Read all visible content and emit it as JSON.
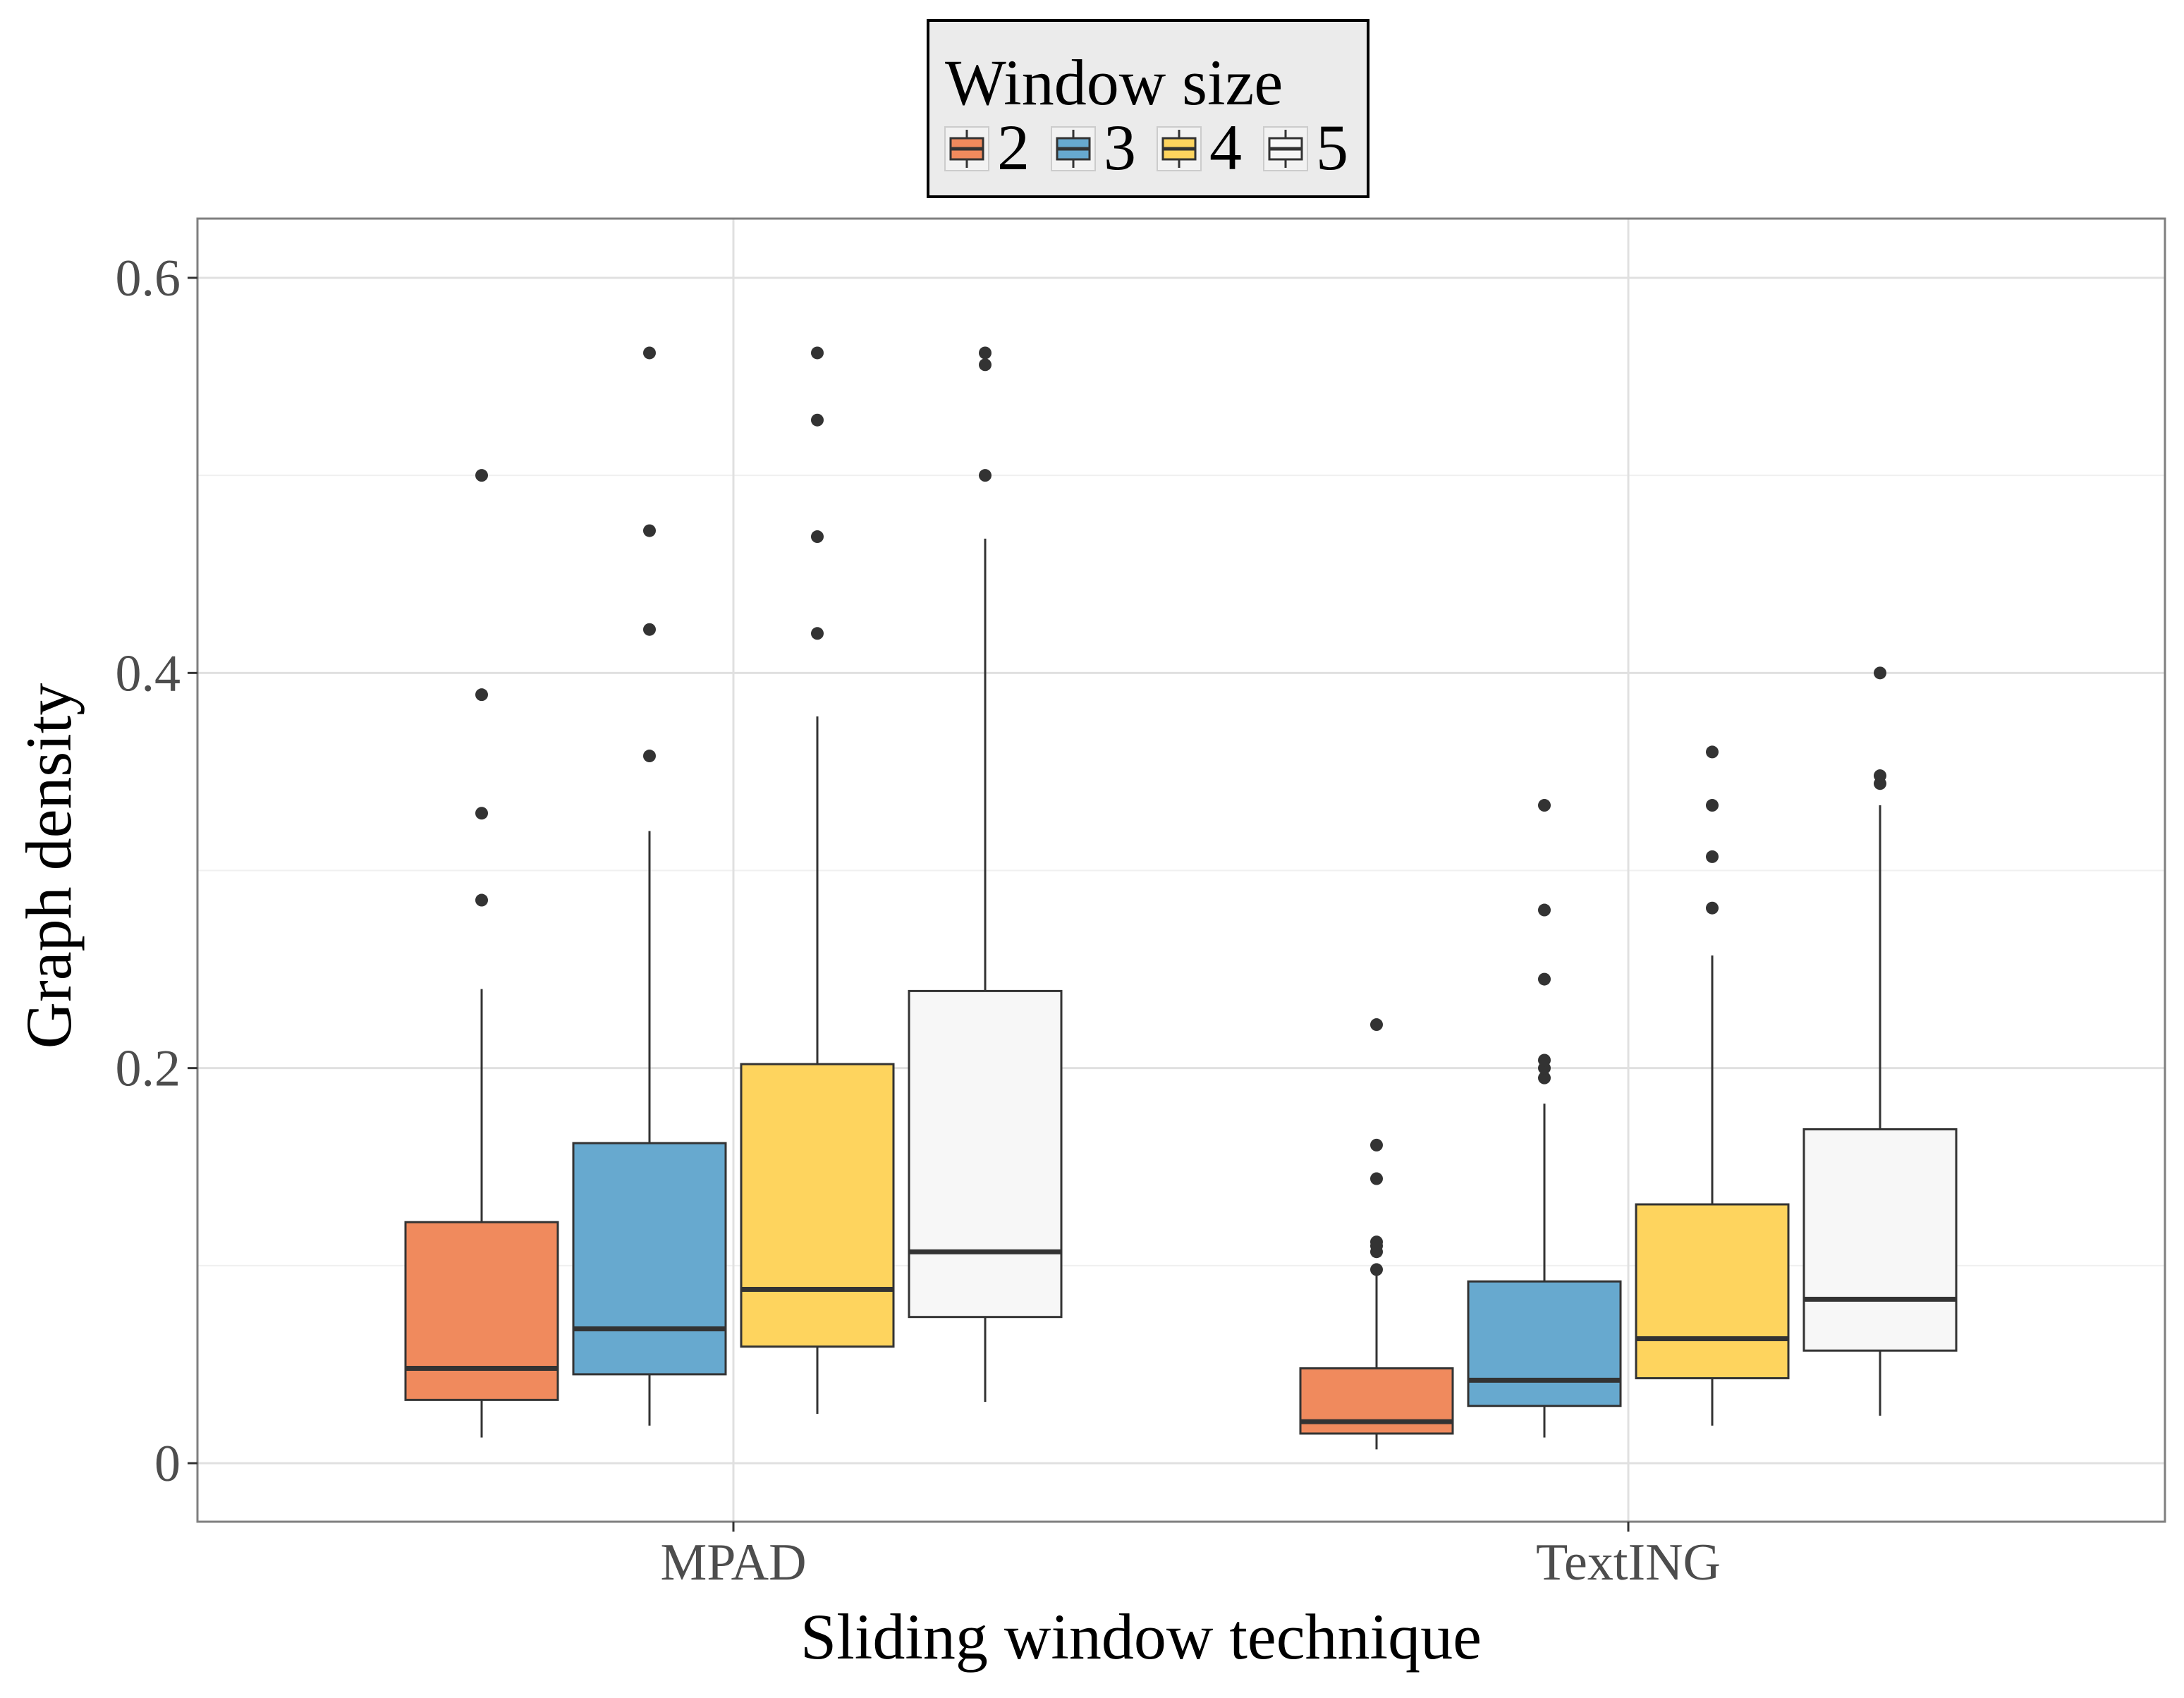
{
  "chart_data": {
    "type": "boxplot",
    "xlabel": "Sliding window technique",
    "ylabel": "Graph density",
    "categories": [
      "MPAD",
      "TextING"
    ],
    "ylim": [
      -0.03,
      0.63
    ],
    "yticks": [
      0,
      0.2,
      0.4,
      0.6
    ],
    "ytick_labels": [
      "0",
      "0.2",
      "0.4",
      "0.6"
    ],
    "grid": true,
    "legend": {
      "title": "Window size",
      "position": "top",
      "entries": [
        "2",
        "3",
        "4",
        "5"
      ]
    },
    "series": [
      {
        "name": "2",
        "color": "#f08a5d",
        "boxes": [
          {
            "category": "MPAD",
            "whisker_low": 0.013,
            "q1": 0.032,
            "median": 0.048,
            "q3": 0.122,
            "whisker_high": 0.24,
            "outliers": [
              0.285,
              0.329,
              0.389,
              0.5
            ]
          },
          {
            "category": "TextING",
            "whisker_low": 0.007,
            "q1": 0.015,
            "median": 0.021,
            "q3": 0.048,
            "whisker_high": 0.095,
            "outliers": [
              0.098,
              0.107,
              0.11,
              0.112,
              0.144,
              0.161,
              0.222
            ]
          }
        ]
      },
      {
        "name": "3",
        "color": "#67a9cf",
        "boxes": [
          {
            "category": "MPAD",
            "whisker_low": 0.019,
            "q1": 0.045,
            "median": 0.068,
            "q3": 0.162,
            "whisker_high": 0.32,
            "outliers": [
              0.358,
              0.422,
              0.472,
              0.562
            ]
          },
          {
            "category": "TextING",
            "whisker_low": 0.013,
            "q1": 0.029,
            "median": 0.042,
            "q3": 0.092,
            "whisker_high": 0.182,
            "outliers": [
              0.195,
              0.2,
              0.204,
              0.245,
              0.28,
              0.333
            ]
          }
        ]
      },
      {
        "name": "4",
        "color": "#fed45e",
        "boxes": [
          {
            "category": "MPAD",
            "whisker_low": 0.025,
            "q1": 0.059,
            "median": 0.088,
            "q3": 0.202,
            "whisker_high": 0.378,
            "outliers": [
              0.42,
              0.469,
              0.528,
              0.562
            ]
          },
          {
            "category": "TextING",
            "whisker_low": 0.019,
            "q1": 0.043,
            "median": 0.063,
            "q3": 0.131,
            "whisker_high": 0.257,
            "outliers": [
              0.281,
              0.307,
              0.333,
              0.36
            ]
          }
        ]
      },
      {
        "name": "5",
        "color": "#f7f7f7",
        "boxes": [
          {
            "category": "MPAD",
            "whisker_low": 0.031,
            "q1": 0.074,
            "median": 0.107,
            "q3": 0.239,
            "whisker_high": 0.468,
            "outliers": [
              0.5,
              0.556,
              0.562
            ]
          },
          {
            "category": "TextING",
            "whisker_low": 0.024,
            "q1": 0.057,
            "median": 0.083,
            "q3": 0.169,
            "whisker_high": 0.333,
            "outliers": [
              0.344,
              0.348,
              0.4
            ]
          }
        ]
      }
    ]
  }
}
